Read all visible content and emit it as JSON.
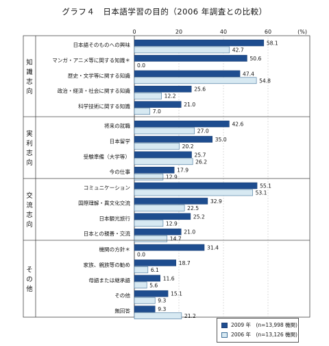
{
  "title": "グラフ４　日本語学習の目的（2006 年調査との比較）",
  "unit_label": "(%)",
  "colors": {
    "series2009": "#1e4d8f",
    "series2006": "#d7e9f2",
    "series2006_stroke": "#3d6f98"
  },
  "chart_data": {
    "type": "bar",
    "orientation": "horizontal",
    "title": "グラフ４　日本語学習の目的（2006 年調査との比較）",
    "xlim": [
      0,
      60
    ],
    "ticks": [
      0,
      20,
      40,
      60
    ],
    "unit": "(%)",
    "groups": [
      {
        "label": "知識志向",
        "categories": [
          "日本語そのものへの興味",
          "マンガ・アニメ等に関する知識＊",
          "歴史・文学等に関する知識",
          "政治・経済・社会に関する知識",
          "科学技術に関する知識"
        ]
      },
      {
        "label": "実利志向",
        "categories": [
          "将来の就職",
          "日本留学",
          "受験準備（大学等）",
          "今の仕事"
        ]
      },
      {
        "label": "交流志向",
        "categories": [
          "コミュニケーション",
          "国際理解・異文化交流",
          "日本観光旅行",
          "日本との親善・交流"
        ]
      },
      {
        "label": "その他",
        "categories": [
          "機関の方針＊",
          "家族、親族等の勧め",
          "母語または継承語",
          "その他",
          "無回答"
        ]
      }
    ],
    "series": [
      {
        "name": "2009 年　(n=13,998 機関)",
        "values": [
          58.1,
          50.6,
          47.4,
          25.6,
          21.0,
          42.6,
          35.0,
          25.7,
          17.9,
          55.1,
          32.9,
          25.2,
          21.0,
          31.4,
          18.7,
          11.6,
          15.1,
          9.3
        ],
        "labels": [
          "58.1",
          "50.6",
          "47.4",
          "25.6",
          "21.0",
          "42.6",
          "35.0",
          "25.7",
          "17.9",
          "55.1",
          "32.9",
          "25.2",
          "21.0",
          "31.4",
          "18.7",
          "11.6",
          "15.1",
          "9.3"
        ]
      },
      {
        "name": "2006 年　(n=13,126 機関)",
        "values": [
          42.7,
          0.0,
          54.8,
          12.2,
          7.0,
          27.0,
          20.2,
          26.2,
          12.9,
          53.1,
          22.5,
          12.9,
          14.7,
          0.0,
          6.1,
          5.6,
          9.3,
          21.2
        ],
        "labels": [
          "42.7",
          "0.0",
          "54.8",
          "12.2",
          "7.0",
          "27.0",
          "20.2",
          "26.2",
          "12.9",
          "53.1",
          "22.5",
          "12.9",
          "14.7",
          "0.0",
          "6.1",
          "5.6",
          "9.3",
          "21.2"
        ]
      }
    ],
    "grid": true,
    "legend": "bottom-right"
  }
}
